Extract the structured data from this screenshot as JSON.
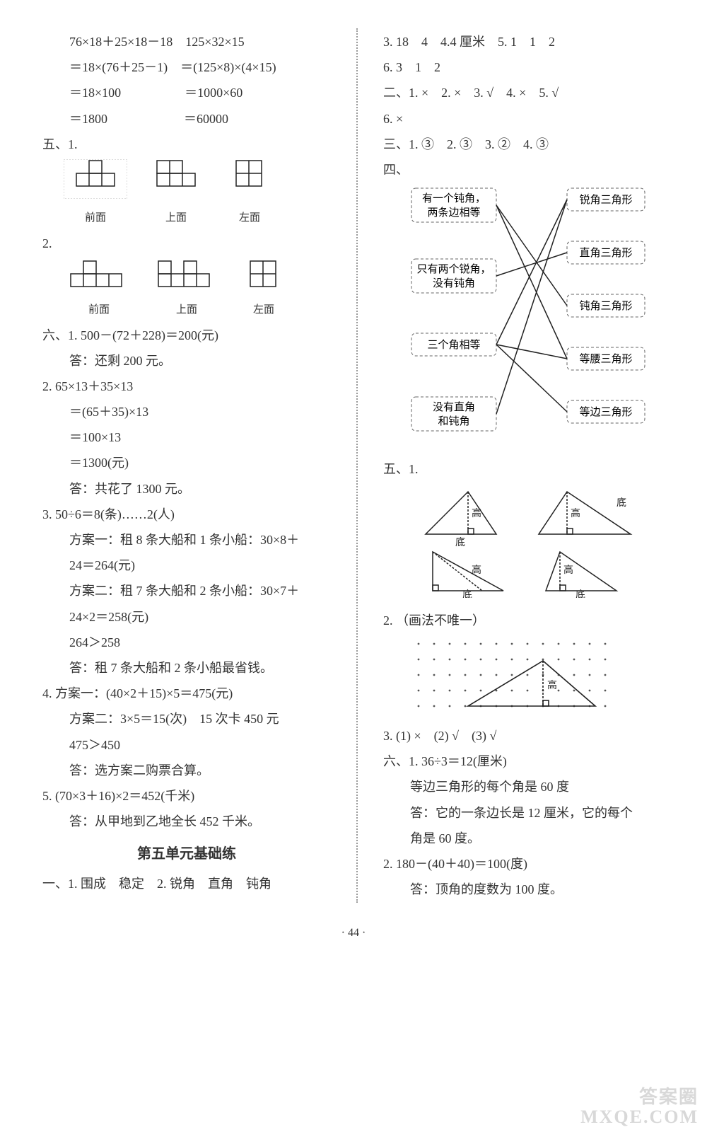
{
  "left": {
    "calc1": {
      "l1": "76×18＋25×18－18　125×32×15",
      "l2": "＝18×(76＋25－1)　＝(125×8)×(4×15)",
      "l3": "＝18×100　　　　　＝1000×60",
      "l4": "＝1800　　　　　　＝60000"
    },
    "sec5_label": "五、1.",
    "sec5_2_label": "2.",
    "view_labels": [
      "前面",
      "上面",
      "左面"
    ],
    "sec6": {
      "q1_l1": "六、1. 500－(72＋228)＝200(元)",
      "q1_l2": "答：还剩 200 元。",
      "q2_l1": "2. 65×13＋35×13",
      "q2_l2": "＝(65＋35)×13",
      "q2_l3": "＝100×13",
      "q2_l4": "＝1300(元)",
      "q2_l5": "答：共花了 1300 元。",
      "q3_l1": "3. 50÷6＝8(条)……2(人)",
      "q3_l2": "方案一：租 8 条大船和 1 条小船：30×8＋",
      "q3_l3": "24＝264(元)",
      "q3_l4": "方案二：租 7 条大船和 2 条小船：30×7＋",
      "q3_l5": "24×2＝258(元)",
      "q3_l6": "264＞258",
      "q3_l7": "答：租 7 条大船和 2 条小船最省钱。",
      "q4_l1": "4. 方案一：(40×2＋15)×5＝475(元)",
      "q4_l2": "方案二：3×5＝15(次)　15 次卡 450 元",
      "q4_l3": "475＞450",
      "q4_l4": "答：选方案二购票合算。",
      "q5_l1": "5. (70×3＋16)×2＝452(千米)",
      "q5_l2": "答：从甲地到乙地全长 452 千米。"
    },
    "unit5_title": "第五单元基础练",
    "unit5_line1": "一、1. 围成　稳定　2. 锐角　直角　钝角"
  },
  "right": {
    "line_r1": "3. 18　4　4.4 厘米　5. 1　1　2",
    "line_r2": "6. 3　1　2",
    "line_r3": "二、1. ×　2. ×　3. √　4. ×　5. √",
    "line_r4": "6. ×",
    "line_r5": "三、1. ③　2. ③　3. ②　4. ③",
    "sec4_label": "四、",
    "match": {
      "left_boxes": [
        "有一个钝角，\n两条边相等",
        "只有两个锐角，\n没有钝角",
        "三个角相等",
        "没有直角\n和钝角"
      ],
      "right_boxes": [
        "锐角三角形",
        "直角三角形",
        "钝角三角形",
        "等腰三角形",
        "等边三角形"
      ]
    },
    "sec5_label": "五、1.",
    "tri_labels": {
      "gao": "高",
      "di": "底"
    },
    "sec5_2": "2. （画法不唯一）",
    "sec5_3": "3. (1) ×　(2) √　(3) √",
    "sec6_1_l1": "六、1. 36÷3＝12(厘米)",
    "sec6_1_l2": "等边三角形的每个角是 60 度",
    "sec6_1_l3": "答：它的一条边长是 12 厘米，它的每个",
    "sec6_1_l4": "角是 60 度。",
    "sec6_2_l1": "2. 180－(40＋40)＝100(度)",
    "sec6_2_l2": "答：顶角的度数为 100 度。"
  },
  "page_num": "· 44 ·",
  "watermark": {
    "l1": "答案圈",
    "l2": "MXQE.COM"
  },
  "colors": {
    "text": "#333333",
    "dotted": "#999999",
    "watermark": "#d8d8d8"
  }
}
